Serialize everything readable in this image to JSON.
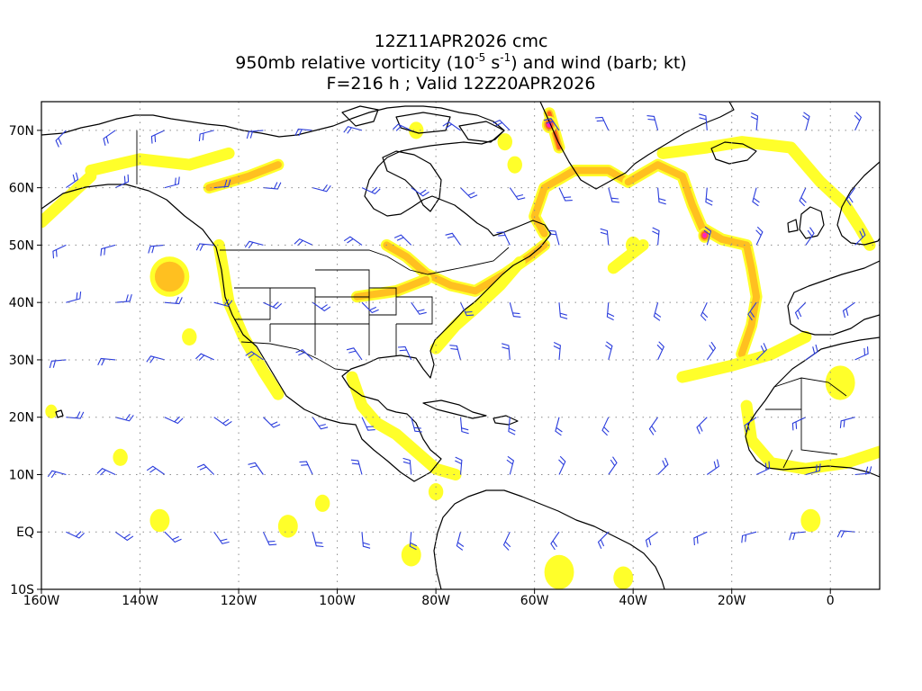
{
  "title": {
    "line1": "12Z11APR2026 cmc",
    "line2_pre": "950mb relative vorticity (10",
    "line2_exp1": "-5",
    "line2_mid": " s",
    "line2_exp2": "-1",
    "line2_post": ") and wind (barb; kt)",
    "line3": "F=216 h ; Valid 12Z20APR2026"
  },
  "map": {
    "lon_range": [
      -160,
      10
    ],
    "lat_range": [
      -10,
      75
    ],
    "x_ticks": [
      {
        "lon": -160,
        "label": "160W"
      },
      {
        "lon": -140,
        "label": "140W"
      },
      {
        "lon": -120,
        "label": "120W"
      },
      {
        "lon": -100,
        "label": "100W"
      },
      {
        "lon": -80,
        "label": "80W"
      },
      {
        "lon": -60,
        "label": "60W"
      },
      {
        "lon": -40,
        "label": "40W"
      },
      {
        "lon": -20,
        "label": "20W"
      },
      {
        "lon": 0,
        "label": "0"
      }
    ],
    "y_ticks": [
      {
        "lat": 70,
        "label": "70N"
      },
      {
        "lat": 60,
        "label": "60N"
      },
      {
        "lat": 50,
        "label": "50N"
      },
      {
        "lat": 40,
        "label": "40N"
      },
      {
        "lat": 30,
        "label": "30N"
      },
      {
        "lat": 20,
        "label": "20N"
      },
      {
        "lat": 10,
        "label": "10N"
      },
      {
        "lat": 0,
        "label": "EQ"
      },
      {
        "lat": -10,
        "label": "10S"
      }
    ],
    "colors": {
      "vort_yellow": "#ffff2a",
      "vort_orange": "#ffc020",
      "vort_red": "#ff6020",
      "vort_magenta": "#ff20c0",
      "barb": "#2a3cdc"
    },
    "vorticity_features": [
      {
        "type": "ring",
        "lon": -134,
        "lat": 44.5,
        "rx": 4,
        "ry": 3.5,
        "level": 2
      },
      {
        "type": "band",
        "level": 2,
        "path": [
          [
            -90,
            50
          ],
          [
            -86,
            48
          ],
          [
            -82,
            45
          ],
          [
            -77,
            43
          ],
          [
            -72,
            42
          ],
          [
            -66,
            45
          ],
          [
            -61,
            48
          ],
          [
            -58,
            50
          ]
        ]
      },
      {
        "type": "band",
        "level": 2,
        "path": [
          [
            -96,
            41
          ],
          [
            -88,
            42
          ],
          [
            -82,
            44
          ]
        ]
      },
      {
        "type": "band",
        "level": 1,
        "path": [
          [
            -80,
            32
          ],
          [
            -76,
            36
          ],
          [
            -72,
            39
          ],
          [
            -67,
            43
          ],
          [
            -63,
            47
          ]
        ]
      },
      {
        "type": "band",
        "level": 3,
        "path": [
          [
            -57,
            73
          ],
          [
            -56,
            70
          ],
          [
            -55,
            67
          ]
        ]
      },
      {
        "type": "band",
        "level": 2,
        "path": [
          [
            -58,
            52
          ],
          [
            -60,
            55
          ],
          [
            -58,
            60
          ],
          [
            -52,
            63
          ],
          [
            -45,
            63
          ],
          [
            -41,
            61
          ]
        ]
      },
      {
        "type": "band",
        "level": 2,
        "path": [
          [
            -41,
            61
          ],
          [
            -35,
            64
          ],
          [
            -30,
            62
          ],
          [
            -28,
            57
          ],
          [
            -26,
            53
          ],
          [
            -22,
            51
          ],
          [
            -17,
            50
          ],
          [
            -16,
            46
          ],
          [
            -15,
            41
          ],
          [
            -16,
            36
          ],
          [
            -18,
            31
          ]
        ]
      },
      {
        "type": "blob",
        "lon": -25.5,
        "lat": 51.7,
        "r": 1.3,
        "level": 4
      },
      {
        "type": "blob",
        "lon": -57,
        "lat": 71,
        "r": 1.5,
        "level": 4
      },
      {
        "type": "band",
        "level": 1,
        "path": [
          [
            -34,
            66
          ],
          [
            -25,
            67
          ],
          [
            -18,
            68
          ],
          [
            -8,
            67
          ],
          [
            -2,
            61
          ],
          [
            3,
            57
          ],
          [
            6,
            53
          ],
          [
            8,
            50
          ]
        ]
      },
      {
        "type": "band",
        "level": 1,
        "path": [
          [
            -150,
            63
          ],
          [
            -140,
            65
          ],
          [
            -130,
            64
          ],
          [
            -122,
            66
          ]
        ]
      },
      {
        "type": "band",
        "level": 1,
        "path": [
          [
            -160,
            54
          ],
          [
            -155,
            58
          ],
          [
            -150,
            62
          ]
        ]
      },
      {
        "type": "band",
        "level": 2,
        "path": [
          [
            -126,
            60
          ],
          [
            -118,
            62
          ],
          [
            -112,
            64
          ]
        ]
      },
      {
        "type": "band",
        "level": 1,
        "path": [
          [
            -124,
            50
          ],
          [
            -123,
            45
          ],
          [
            -122,
            40
          ],
          [
            -119,
            34
          ],
          [
            -115,
            28
          ],
          [
            -112,
            24
          ]
        ]
      },
      {
        "type": "band",
        "level": 1,
        "path": [
          [
            -97,
            27
          ],
          [
            -95,
            22
          ],
          [
            -92,
            19
          ],
          [
            -88,
            17
          ],
          [
            -84,
            14
          ],
          [
            -80,
            11
          ],
          [
            -76,
            10
          ]
        ]
      },
      {
        "type": "band",
        "level": 1,
        "path": [
          [
            -17,
            22
          ],
          [
            -16,
            16
          ],
          [
            -12,
            12
          ],
          [
            -5,
            11
          ],
          [
            3,
            12
          ],
          [
            10,
            14
          ]
        ]
      },
      {
        "type": "band",
        "level": 1,
        "path": [
          [
            -30,
            27
          ],
          [
            -20,
            29
          ],
          [
            -12,
            31
          ],
          [
            -5,
            34
          ]
        ]
      },
      {
        "type": "band",
        "level": 1,
        "path": [
          [
            -44,
            46
          ],
          [
            -38,
            50
          ]
        ]
      },
      {
        "type": "blob",
        "lon": -136,
        "lat": 2,
        "r": 2,
        "level": 1
      },
      {
        "type": "blob",
        "lon": -110,
        "lat": 1,
        "r": 2,
        "level": 1
      },
      {
        "type": "blob",
        "lon": -103,
        "lat": 5,
        "r": 1.5,
        "level": 1
      },
      {
        "type": "blob",
        "lon": -85,
        "lat": -4,
        "r": 2,
        "level": 1
      },
      {
        "type": "blob",
        "lon": -80,
        "lat": 7,
        "r": 1.5,
        "level": 1
      },
      {
        "type": "blob",
        "lon": -55,
        "lat": -7,
        "r": 3,
        "level": 1
      },
      {
        "type": "blob",
        "lon": -42,
        "lat": -8,
        "r": 2,
        "level": 1
      },
      {
        "type": "blob",
        "lon": -130,
        "lat": 34,
        "r": 1.5,
        "level": 1
      },
      {
        "type": "blob",
        "lon": -144,
        "lat": 13,
        "r": 1.5,
        "level": 1
      },
      {
        "type": "blob",
        "lon": -158,
        "lat": 21,
        "r": 1.2,
        "level": 1
      },
      {
        "type": "blob",
        "lon": -64,
        "lat": 64,
        "r": 1.5,
        "level": 1
      },
      {
        "type": "blob",
        "lon": -66,
        "lat": 68,
        "r": 1.5,
        "level": 1
      },
      {
        "type": "blob",
        "lon": -84,
        "lat": 70,
        "r": 1.5,
        "level": 1
      },
      {
        "type": "blob",
        "lon": -40,
        "lat": 50,
        "r": 1.5,
        "level": 1
      },
      {
        "type": "blob",
        "lon": 2,
        "lat": 26,
        "r": 3,
        "level": 1
      },
      {
        "type": "blob",
        "lon": -4,
        "lat": 2,
        "r": 2,
        "level": 1
      }
    ],
    "barb_spacing_deg": 10
  }
}
